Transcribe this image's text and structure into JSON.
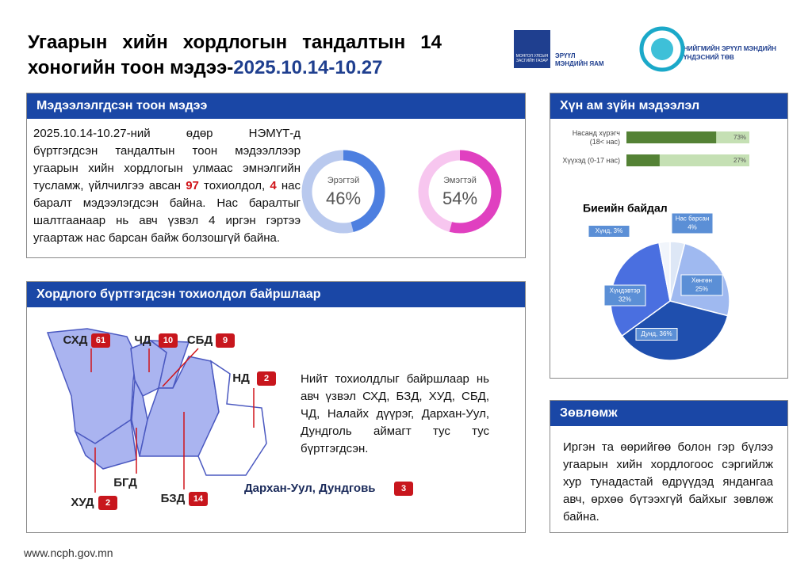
{
  "header": {
    "title_line1": "Угаарын хийн хордлогын тандалтын 14",
    "title_line2": "хоногийн тоон мэдээ-",
    "date_range": "2025.10.14-10.27",
    "emblem_text": "МОНГОЛ УЛСЫН ЗАСГИЙН ГАЗАР",
    "ministry": [
      "ЭРҮҮЛ",
      "МЭНДИЙН ЯАМ"
    ],
    "center": [
      "НИЙГМИЙН ЭРҮҮЛ МЭНДИЙН",
      "ҮНДЭСНИЙ ТӨВ"
    ]
  },
  "stats": {
    "heading": "Мэдээлэлгдсэн тоон мэдээ",
    "text_before": "2025.10.14-10.27-ний өдөр НЭМҮТ-д бүртгэгдсэн тандалтын тоон мэдээллээр угаарын хийн хордлогын улмаас эмнэлгийн тусламж, үйлчилгээ авсан",
    "cases": "97",
    "text_mid": "тохиолдол,",
    "deaths": "4",
    "text_after": "нас баралт мэдээлэгдсэн байна. Нас баралтыг шалтгаанаар нь авч үзвэл 4 иргэн гэртээ угаартаж нас барсан байж болзошгүй байна.",
    "donuts": [
      {
        "label": "Эрэгтэй",
        "value": 46,
        "value_label": "46%",
        "color": "#4d7fe0",
        "track": "#b9c9ee"
      },
      {
        "label": "Эмэгтэй",
        "value": 54,
        "value_label": "54%",
        "color": "#e040c0",
        "track": "#f7c6ef"
      }
    ]
  },
  "location": {
    "heading": "Хордлого бүртгэгдсэн тохиолдол байршлаар",
    "regions": [
      {
        "name": "СХД",
        "count": "61"
      },
      {
        "name": "ЧД",
        "count": "10"
      },
      {
        "name": "СБД",
        "count": "9"
      },
      {
        "name": "НД",
        "count": "2"
      },
      {
        "name": "БГД"
      },
      {
        "name": "ХУД",
        "count": "2"
      },
      {
        "name": "БЗД",
        "count": "14"
      }
    ],
    "other": {
      "name": "Дархан-Уул, Дундговь",
      "count": "3"
    },
    "text": "Нийт тохиолдлыг байршлаар нь авч үзвэл СХД, БЗД, ХУД, СБД, ЧД, Налайх дүүрэг, Дархан-Уул, Дундголь аймагт тус тус бүртгэгдсэн."
  },
  "demography": {
    "heading": "Хүн ам зүйн мэдээлэл",
    "bars": [
      {
        "label": [
          "Насанд хүрэгч",
          "(18< нас)"
        ],
        "value": 73,
        "value_label": "73%"
      },
      {
        "label": [
          "Хүүхэд (0-17 нас)"
        ],
        "value": 27,
        "value_label": "27%"
      }
    ],
    "bar_color": "#548235",
    "track_color": "#c5e0b4",
    "pie_title": "Биеийн байдал",
    "slices": [
      {
        "label": [
          "Нас барсан",
          "4%"
        ],
        "value": 4,
        "color": "#dde7f6"
      },
      {
        "label": [
          "Хөнгөн",
          "25%"
        ],
        "value": 25,
        "color": "#9fb9f0"
      },
      {
        "label": [
          "Дунд, 36%"
        ],
        "value": 36,
        "color": "#1f4fae"
      },
      {
        "label": [
          "Хүндэвтэр",
          "32%"
        ],
        "value": 32,
        "color": "#4a6fe0"
      },
      {
        "label": [
          "Хүнд, 3%"
        ],
        "value": 3,
        "color": "#f1f5fb"
      }
    ]
  },
  "advice": {
    "heading": "Зөвлөмж",
    "text": "Иргэн та өөрийгөө болон гэр бүлээ угаарын хийн хордлогоос сэргийлж хур тунадастай өдрүүдэд яндангаа авч, өрхөө бүтээхгүй байхыг зөвлөж байна."
  },
  "footer": "www.ncph.gov.mn"
}
